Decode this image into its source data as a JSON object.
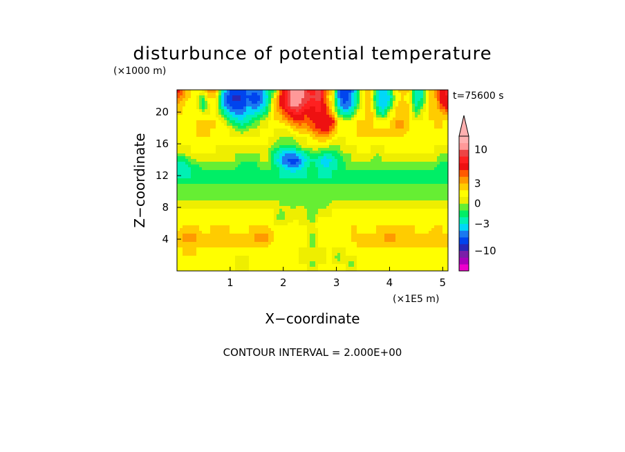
{
  "chart_data": {
    "type": "heatmap",
    "title": "disturbunce of potential temperature",
    "y_unit": "(×1000 m)",
    "x_unit": "(×1E5 m)",
    "xlabel": "X−coordinate",
    "ylabel": "Z−coordinate",
    "time_label": "t=75600 s",
    "footer": "CONTOUR INTERVAL = 2.000E+00",
    "x_ticks": [
      "1",
      "2",
      "3",
      "4",
      "5"
    ],
    "y_ticks": [
      "4",
      "8",
      "12",
      "16",
      "20"
    ],
    "xlim": [
      0,
      5.1
    ],
    "ylim": [
      0,
      22.8
    ],
    "contour_interval": 2,
    "colorbar": {
      "tick_labels": [
        "10",
        "3",
        "0",
        "−3",
        "−10"
      ],
      "tick_values": [
        10,
        3,
        0,
        -3,
        -10
      ],
      "levels": [
        -20,
        -15,
        -11,
        -9,
        -7,
        -5,
        -4,
        -3,
        -2,
        -1,
        0,
        1,
        2,
        3,
        4,
        5,
        7,
        9,
        11,
        15,
        20
      ],
      "colors": [
        "#ee00cc",
        "#aa00bb",
        "#7a1fa8",
        "#2828b8",
        "#0044ee",
        "#1b78f0",
        "#00d8f8",
        "#00f0b4",
        "#00ee66",
        "#66ee33",
        "#eeee00",
        "#ffff00",
        "#ffcc00",
        "#ff9900",
        "#ff5a00",
        "#ee1111",
        "#ff2020",
        "#ee4444",
        "#ff9999",
        "#ffb0b0"
      ]
    },
    "rows_top_to_bottom": [
      [
        6,
        4,
        2,
        2,
        1,
        4,
        4,
        -2,
        -4,
        -6,
        -6,
        -4,
        -5,
        -4,
        -2,
        -2,
        4,
        8,
        12,
        14,
        9,
        8,
        11,
        4,
        2,
        -4,
        -7,
        -5,
        -2,
        2,
        3,
        -2,
        -4,
        -2,
        2,
        3,
        2,
        -3,
        -2,
        2,
        3,
        6,
        8
      ],
      [
        4,
        3,
        2,
        1,
        -1,
        2,
        2,
        -4,
        -6,
        -8,
        -7,
        -5,
        -6,
        -5,
        -3,
        1,
        5,
        9,
        13,
        12,
        10,
        9,
        10,
        4,
        1,
        -4,
        -6,
        -4,
        -2,
        2,
        2,
        -3,
        -4,
        -3,
        1,
        2,
        1,
        -3,
        -2,
        2,
        3,
        6,
        7
      ],
      [
        3,
        2,
        1,
        1,
        -2,
        1,
        1,
        -3,
        -5,
        -6,
        -6,
        -4,
        -5,
        -4,
        -2,
        2,
        5,
        8,
        12,
        11,
        8,
        7,
        8,
        5,
        2,
        -3,
        -5,
        -4,
        -1,
        2,
        2,
        -2,
        -4,
        -2,
        2,
        3,
        2,
        -2,
        -1,
        2,
        2,
        5,
        6
      ],
      [
        2,
        2,
        1,
        2,
        1,
        1,
        1,
        -1,
        -3,
        -4,
        -4,
        -3,
        -3,
        -2,
        -1,
        2,
        3,
        5,
        7,
        8,
        5,
        6,
        7,
        5,
        3,
        -1,
        -3,
        -2,
        1,
        2,
        3,
        -1,
        -2,
        1,
        2,
        2,
        2,
        -1,
        1,
        2,
        2,
        3,
        3
      ],
      [
        2,
        1,
        1,
        2,
        2,
        2,
        2,
        1,
        -1,
        -2,
        -3,
        -2,
        -1,
        0,
        1,
        2,
        2,
        3,
        4,
        5,
        4,
        5,
        7,
        7,
        6,
        2,
        1,
        1,
        2,
        2,
        3,
        1,
        1,
        2,
        3,
        3,
        2,
        1,
        1,
        2,
        2,
        2,
        2
      ],
      [
        1,
        1,
        1,
        2,
        2,
        2,
        2,
        2,
        1,
        0,
        -1,
        0,
        0,
        1,
        1,
        1,
        1,
        1,
        2,
        3,
        3,
        4,
        5,
        6,
        4,
        2,
        1,
        2,
        2,
        2,
        2,
        2,
        2,
        2,
        3,
        3,
        2,
        1,
        1,
        1,
        2,
        2,
        1
      ],
      [
        1,
        1,
        1,
        2,
        2,
        2,
        1,
        1,
        1,
        1,
        1,
        1,
        1,
        1,
        1,
        1,
        0,
        0,
        0,
        1,
        1,
        2,
        3,
        3,
        2,
        1,
        1,
        1,
        2,
        2,
        2,
        2,
        2,
        2,
        2,
        2,
        1,
        1,
        1,
        1,
        1,
        1,
        1
      ],
      [
        1,
        1,
        1,
        1,
        1,
        1,
        1,
        1,
        1,
        1,
        1,
        1,
        1,
        1,
        1,
        0,
        -1,
        -1,
        -1,
        0,
        1,
        1,
        1,
        1,
        0,
        0,
        1,
        1,
        1,
        1,
        1,
        1,
        1,
        1,
        1,
        1,
        1,
        1,
        1,
        1,
        1,
        1,
        1
      ],
      [
        0,
        0,
        1,
        1,
        1,
        1,
        1,
        0,
        0,
        0,
        0,
        0,
        0,
        0,
        0,
        -2,
        -3,
        -4,
        -4,
        -3,
        -2,
        -1,
        -1,
        -2,
        -2,
        -1,
        0,
        0,
        1,
        1,
        1,
        0,
        1,
        1,
        1,
        1,
        1,
        1,
        1,
        1,
        1,
        0,
        0
      ],
      [
        -2,
        -2,
        -1,
        0,
        0,
        0,
        0,
        0,
        0,
        0,
        -1,
        -1,
        -1,
        0,
        0,
        -2,
        -4,
        -5,
        -6,
        -5,
        -3,
        -2,
        -3,
        -4,
        -3,
        -2,
        -1,
        0,
        0,
        0,
        0,
        -1,
        0,
        0,
        0,
        0,
        0,
        0,
        0,
        0,
        0,
        -1,
        -1
      ],
      [
        -3,
        -3,
        -2,
        -2,
        -1,
        -1,
        -1,
        -1,
        -1,
        -1,
        -2,
        -2,
        -2,
        -1,
        -1,
        -1,
        -2,
        -3,
        -4,
        -3,
        -2,
        -1,
        -2,
        -3,
        -2,
        -2,
        -1,
        -1,
        -1,
        -1,
        -1,
        -1,
        -1,
        -1,
        -1,
        -1,
        -1,
        -1,
        -1,
        -1,
        -1,
        -2,
        -2
      ],
      [
        -2,
        -2,
        -2,
        -2,
        -2,
        -2,
        -2,
        -2,
        -2,
        -2,
        -2,
        -2,
        -2,
        -2,
        -2,
        -2,
        -2,
        -2,
        -2,
        -2,
        -2,
        -2,
        -2,
        -2,
        -2,
        -2,
        -2,
        -2,
        -2,
        -2,
        -2,
        -2,
        -2,
        -2,
        -2,
        -2,
        -2,
        -2,
        -2,
        -2,
        -2,
        -2,
        -2
      ],
      [
        -1,
        -1,
        -1,
        -1,
        -1,
        -1,
        -1,
        -1,
        -1,
        -1,
        -1,
        -1,
        -1,
        -1,
        -1,
        -1,
        -1,
        -1,
        -1,
        -1,
        -1,
        -1,
        -1,
        -1,
        -1,
        -1,
        -1,
        -1,
        -1,
        -1,
        -1,
        -1,
        -1,
        -1,
        -1,
        -1,
        -1,
        -1,
        -1,
        -1,
        -1,
        -1,
        -1
      ],
      [
        -1,
        -1,
        -1,
        -1,
        -1,
        -1,
        -1,
        -1,
        -1,
        -1,
        -1,
        -1,
        -1,
        -1,
        -1,
        -1,
        -1,
        -1,
        -1,
        -1,
        -1,
        -1,
        -1,
        -1,
        -1,
        -1,
        -1,
        -1,
        -1,
        -1,
        -1,
        -1,
        -1,
        -1,
        -1,
        -1,
        -1,
        -1,
        -1,
        -1,
        -1,
        -1,
        -1
      ],
      [
        0,
        0,
        0,
        0,
        0,
        0,
        0,
        0,
        0,
        0,
        0,
        0,
        0,
        0,
        0,
        0,
        0,
        -1,
        -1,
        -1,
        -1,
        0,
        -1,
        -1,
        0,
        0,
        0,
        0,
        0,
        0,
        0,
        0,
        0,
        0,
        0,
        0,
        0,
        0,
        0,
        0,
        0,
        0,
        0
      ],
      [
        1,
        1,
        1,
        1,
        1,
        1,
        1,
        1,
        1,
        1,
        1,
        1,
        1,
        1,
        1,
        1,
        0,
        1,
        0,
        1,
        0,
        -1,
        0,
        0,
        1,
        1,
        1,
        1,
        1,
        1,
        1,
        1,
        1,
        1,
        1,
        1,
        1,
        1,
        1,
        1,
        1,
        1,
        1
      ],
      [
        1,
        1,
        1,
        1,
        1,
        1,
        1,
        1,
        1,
        1,
        1,
        1,
        1,
        1,
        1,
        1,
        -1,
        0,
        0,
        1,
        0,
        -1,
        1,
        1,
        1,
        1,
        1,
        1,
        1,
        1,
        1,
        1,
        1,
        1,
        1,
        1,
        1,
        1,
        1,
        1,
        1,
        1,
        1
      ],
      [
        1,
        2,
        2,
        2,
        1,
        2,
        2,
        2,
        2,
        1,
        1,
        2,
        2,
        2,
        2,
        1,
        1,
        1,
        2,
        1,
        1,
        0,
        2,
        2,
        1,
        1,
        1,
        2,
        2,
        1,
        1,
        2,
        2,
        2,
        2,
        2,
        2,
        2,
        1,
        1,
        2,
        2,
        1
      ],
      [
        2,
        3,
        3,
        3,
        2,
        2,
        3,
        3,
        2,
        2,
        2,
        2,
        3,
        3,
        3,
        2,
        1,
        1,
        1,
        1,
        1,
        0,
        1,
        1,
        1,
        1,
        1,
        2,
        2,
        2,
        2,
        2,
        3,
        3,
        3,
        3,
        2,
        2,
        2,
        2,
        3,
        2,
        2
      ],
      [
        2,
        3,
        3,
        3,
        2,
        2,
        2,
        3,
        2,
        2,
        2,
        2,
        3,
        3,
        3,
        2,
        1,
        1,
        1,
        1,
        1,
        -1,
        1,
        1,
        1,
        1,
        1,
        2,
        2,
        2,
        2,
        2,
        3,
        3,
        3,
        2,
        2,
        2,
        2,
        2,
        2,
        3,
        2
      ],
      [
        2,
        2,
        2,
        2,
        2,
        2,
        2,
        2,
        2,
        2,
        2,
        2,
        2,
        2,
        2,
        1,
        1,
        1,
        1,
        1,
        1,
        0,
        1,
        1,
        1,
        1,
        1,
        1,
        2,
        2,
        2,
        2,
        2,
        2,
        2,
        2,
        2,
        2,
        2,
        2,
        2,
        2,
        2
      ],
      [
        1,
        2,
        2,
        2,
        1,
        1,
        1,
        2,
        1,
        1,
        1,
        1,
        1,
        1,
        1,
        1,
        1,
        1,
        1,
        1,
        0,
        1,
        0,
        1,
        1,
        -1,
        1,
        1,
        1,
        1,
        1,
        1,
        1,
        2,
        1,
        1,
        1,
        1,
        1,
        1,
        1,
        2,
        1
      ],
      [
        1,
        1,
        2,
        1,
        1,
        1,
        1,
        1,
        1,
        1,
        0,
        1,
        1,
        1,
        1,
        1,
        1,
        1,
        1,
        1,
        1,
        -1,
        1,
        1,
        1,
        1,
        1,
        -1,
        1,
        1,
        1,
        1,
        1,
        1,
        1,
        1,
        1,
        1,
        1,
        1,
        1,
        1,
        1
      ],
      [
        1,
        1,
        1,
        1,
        1,
        1,
        1,
        1,
        1,
        1,
        1,
        1,
        1,
        1,
        1,
        1,
        1,
        1,
        1,
        1,
        1,
        1,
        1,
        1,
        1,
        1,
        1,
        1,
        1,
        1,
        1,
        1,
        1,
        1,
        1,
        1,
        1,
        1,
        1,
        1,
        1,
        1,
        1
      ]
    ]
  }
}
